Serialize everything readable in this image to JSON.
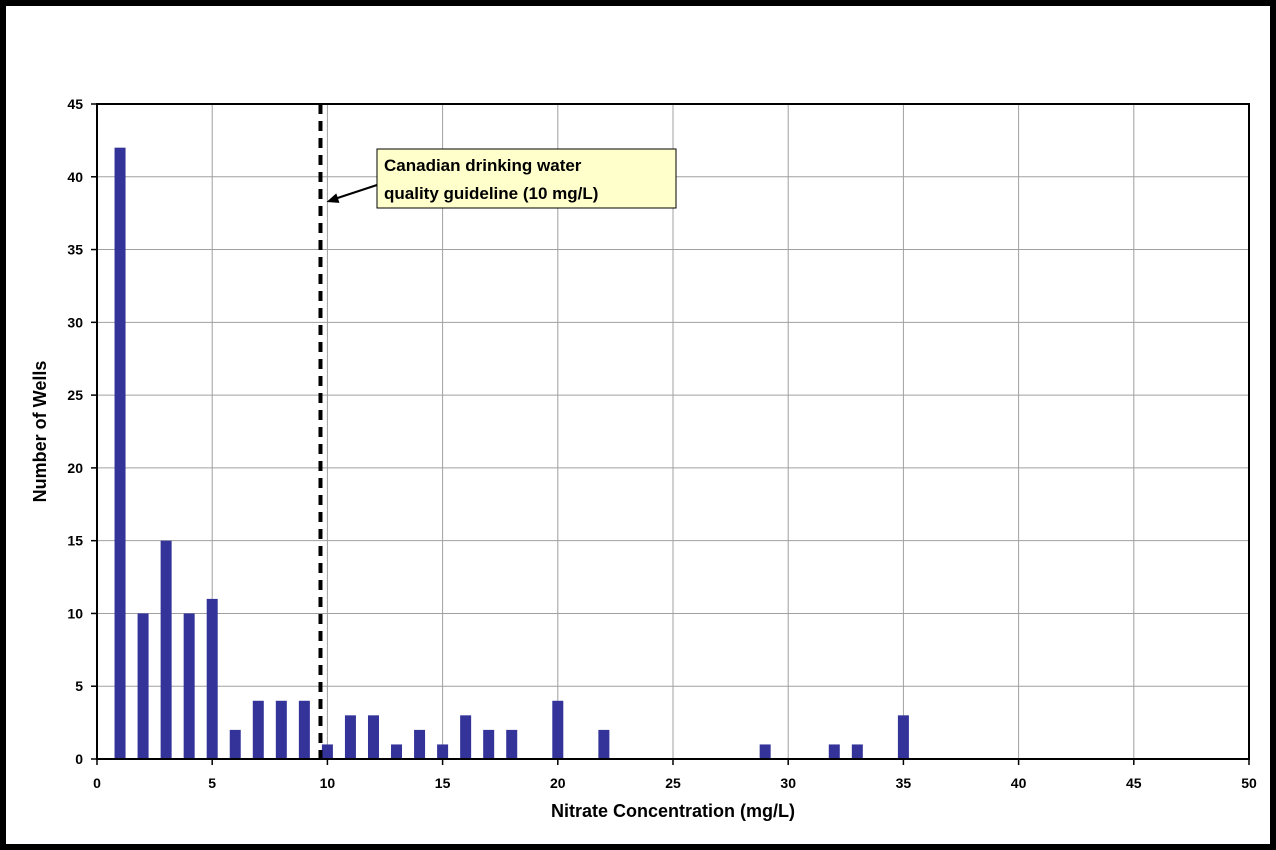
{
  "chart_data": {
    "type": "bar",
    "title": "",
    "xlabel": "Nitrate Concentration (mg/L)",
    "ylabel": "Number of Wells",
    "xlim": [
      0,
      50
    ],
    "ylim": [
      0,
      45
    ],
    "x_ticks": [
      0,
      5,
      10,
      15,
      20,
      25,
      30,
      35,
      40,
      45,
      50
    ],
    "y_ticks": [
      0,
      5,
      10,
      15,
      20,
      25,
      30,
      35,
      40,
      45
    ],
    "grid": true,
    "x": [
      1,
      2,
      3,
      4,
      5,
      6,
      7,
      8,
      9,
      10,
      11,
      12,
      13,
      14,
      15,
      16,
      17,
      18,
      20,
      22,
      29,
      32,
      33,
      35
    ],
    "values": [
      42,
      10,
      15,
      10,
      11,
      2,
      4,
      4,
      4,
      1,
      3,
      3,
      1,
      2,
      1,
      3,
      2,
      2,
      4,
      2,
      1,
      1,
      1,
      3
    ],
    "bar_color": "#333399",
    "reference_line": {
      "x": 9.7,
      "style": "dashed",
      "color": "#000000"
    },
    "annotation": {
      "lines": [
        "Canadian drinking water",
        "quality guideline (10 mg/L)"
      ],
      "box_color": "#ffffcc"
    }
  }
}
